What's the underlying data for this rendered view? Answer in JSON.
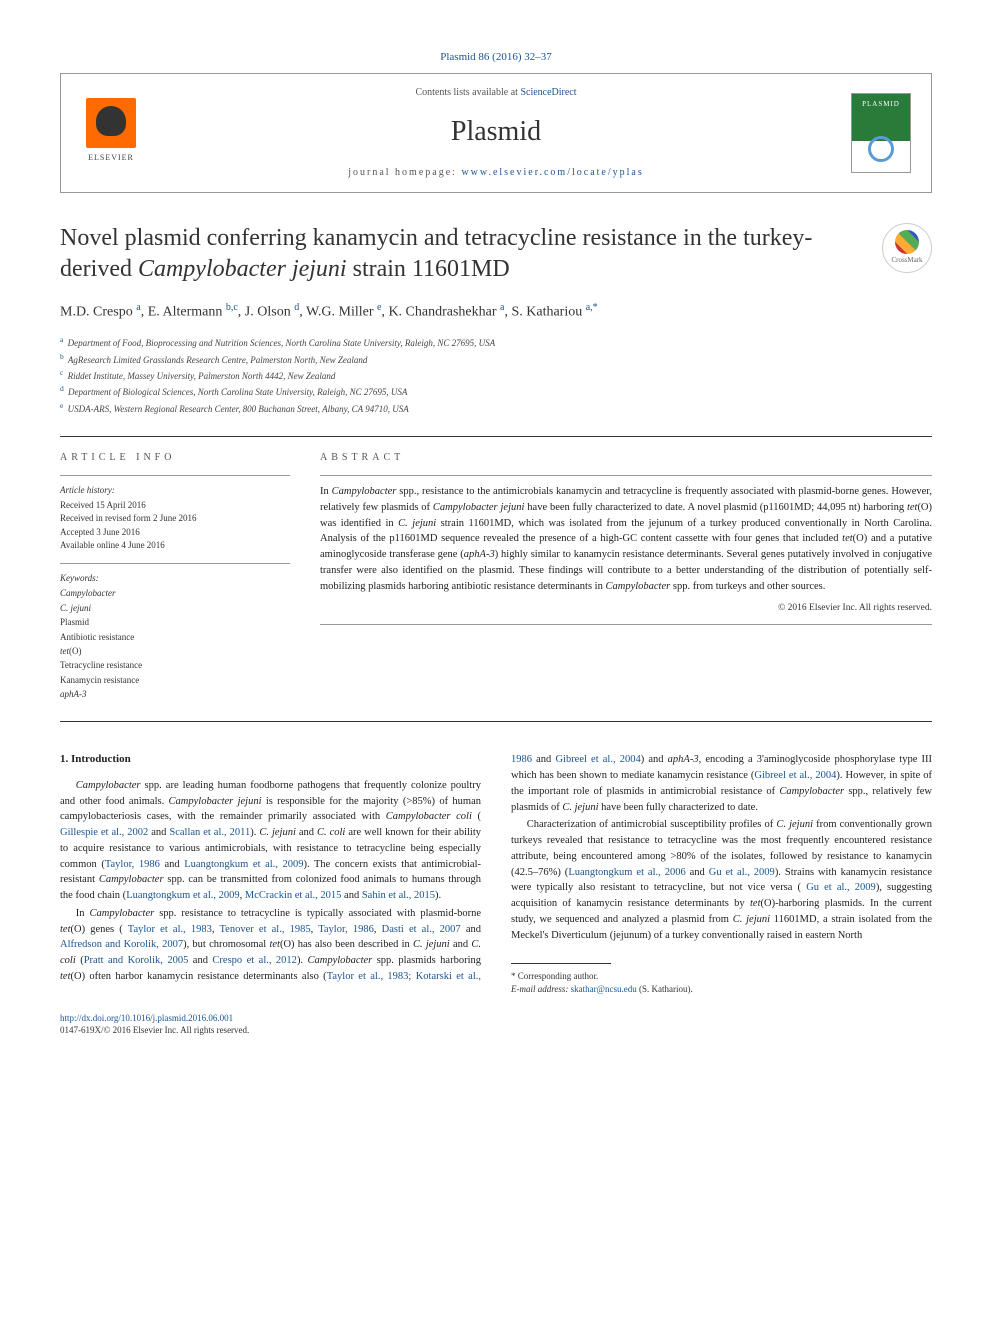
{
  "header": {
    "citation": "Plasmid 86 (2016) 32–37",
    "contents_text": "Contents lists available at ",
    "contents_link": "ScienceDirect",
    "journal": "Plasmid",
    "homepage_label": "journal homepage: ",
    "homepage_url": "www.elsevier.com/locate/yplas",
    "publisher": "ELSEVIER"
  },
  "crossmark": "CrossMark",
  "title_plain": "Novel plasmid conferring kanamycin and tetracycline resistance in the turkey-derived ",
  "title_italic": "Campylobacter jejuni",
  "title_suffix": " strain 11601MD",
  "authors_html": "M.D. Crespo <sup>a</sup>, E. Altermann <sup>b,c</sup>, J. Olson <sup>d</sup>, W.G. Miller <sup>e</sup>, K. Chandrashekhar <sup>a</sup>, S. Kathariou <sup>a,*</sup>",
  "affiliations": [
    {
      "key": "a",
      "text": "Department of Food, Bioprocessing and Nutrition Sciences, North Carolina State University, Raleigh, NC 27695, USA"
    },
    {
      "key": "b",
      "text": "AgResearch Limited Grasslands Research Centre, Palmerston North, New Zealand"
    },
    {
      "key": "c",
      "text": "Riddet Institute, Massey University, Palmerston North 4442, New Zealand"
    },
    {
      "key": "d",
      "text": "Department of Biological Sciences, North Carolina State University, Raleigh, NC 27695, USA"
    },
    {
      "key": "e",
      "text": "USDA-ARS, Western Regional Research Center, 800 Buchanan Street, Albany, CA 94710, USA"
    }
  ],
  "article_info": {
    "heading": "article info",
    "history_label": "Article history:",
    "history": "Received 15 April 2016\nReceived in revised form 2 June 2016\nAccepted 3 June 2016\nAvailable online 4 June 2016",
    "keywords_label": "Keywords:",
    "keywords_html": "<em>Campylobacter</em><br><em>C. jejuni</em><br>Plasmid<br>Antibiotic resistance<br><em>tet</em>(O)<br>Tetracycline resistance<br>Kanamycin resistance<br><em>aphA-3</em>"
  },
  "abstract": {
    "heading": "abstract",
    "text_html": "In <em>Campylobacter</em> spp., resistance to the antimicrobials kanamycin and tetracycline is frequently associated with plasmid-borne genes. However, relatively few plasmids of <em>Campylobacter jejuni</em> have been fully characterized to date. A novel plasmid (p11601MD; 44,095 nt) harboring <em>tet</em>(O) was identified in <em>C. jejuni</em> strain 11601MD, which was isolated from the jejunum of a turkey produced conventionally in North Carolina. Analysis of the p11601MD sequence revealed the presence of a high-GC content cassette with four genes that included <em>tet</em>(O) and a putative aminoglycoside transferase gene (<em>aphA-3</em>) highly similar to kanamycin resistance determinants. Several genes putatively involved in conjugative transfer were also identified on the plasmid. These findings will contribute to a better understanding of the distribution of potentially self-mobilizing plasmids harboring antibiotic resistance determinants in <em>Campylobacter</em> spp. from turkeys and other sources.",
    "copyright": "© 2016 Elsevier Inc. All rights reserved."
  },
  "body": {
    "heading": "1. Introduction",
    "paragraphs_html": [
      "<em>Campylobacter</em> spp. are leading human foodborne pathogens that frequently colonize poultry and other food animals. <em>Campylobacter jejuni</em> is responsible for the majority (&gt;85%) of human campylobacteriosis cases, with the remainder primarily associated with <em>Campylobacter coli</em> ( <a class='link'>Gillespie et al., 2002</a> and <a class='link'>Scallan et al., 2011</a>). <em>C. jejuni</em> and <em>C. coli</em> are well known for their ability to acquire resistance to various antimicrobials, with resistance to tetracycline being especially common (<a class='link'>Taylor, 1986</a> and <a class='link'>Luangtongkum et al., 2009</a>). The concern exists that antimicrobial-resistant <em>Campylobacter</em> spp. can be transmitted from colonized food animals to humans through the food chain (<a class='link'>Luangtongkum et al., 2009</a>, <a class='link'>McCrackin et al., 2015</a> and <a class='link'>Sahin et al., 2015</a>).",
      "In <em>Campylobacter</em> spp. resistance to tetracycline is typically associated with plasmid-borne <em>tet</em>(O) genes ( <a class='link'>Taylor et al., 1983</a>, <a class='link'>Tenover et al., 1985</a>, <a class='link'>Taylor, 1986</a>, <a class='link'>Dasti et al., 2007</a> and <a class='link'>Alfredson and Korolik, 2007</a>), but chromosomal <em>tet</em>(O) has also been described in <em>C. jejuni</em> and <em>C. coli</em> (<a class='link'>Pratt and Korolik, 2005</a> and <a class='link'>Crespo et al., 2012</a>). <em>Campylobacter</em> spp. plasmids harboring <em>tet</em>(O) often harbor kanamycin resistance determinants also (<a class='link'>Taylor et al., 1983; Kotarski et al., 1986</a> and <a class='link'>Gibreel et al., 2004</a>) and <em>aphA-3</em>, encoding a 3'aminoglycoside phosphorylase type III which has been shown to mediate kanamycin resistance (<a class='link'>Gibreel et al., 2004</a>). However, in spite of the important role of plasmids in antimicrobial resistance of <em>Campylobacter</em> spp., relatively few plasmids of <em>C. jejuni</em> have been fully characterized to date.",
      "Characterization of antimicrobial susceptibility profiles of <em>C. jejuni</em> from conventionally grown turkeys revealed that resistance to tetracycline was the most frequently encountered resistance attribute, being encountered among &gt;80% of the isolates, followed by resistance to kanamycin (42.5–76%) (<a class='link'>Luangtongkum et al., 2006</a> and <a class='link'>Gu et al., 2009</a>). Strains with kanamycin resistance were typically also resistant to tetracycline, but not vice versa ( <a class='link'>Gu et al., 2009</a>), suggesting acquisition of kanamycin resistance determinants by <em>tet</em>(O)-harboring plasmids. In the current study, we sequenced and analyzed a plasmid from <em>C. jejuni</em> 11601MD, a strain isolated from the Meckel's Diverticulum (jejunum) of a turkey conventionally raised in eastern North"
    ]
  },
  "footnote": {
    "corr_label": "* Corresponding author.",
    "email_label": "E-mail address:",
    "email": "skathar@ncsu.edu",
    "email_name": "(S. Kathariou)."
  },
  "footer": {
    "doi": "http://dx.doi.org/10.1016/j.plasmid.2016.06.001",
    "issn": "0147-619X/© 2016 Elsevier Inc. All rights reserved."
  },
  "colors": {
    "link": "#1a5490",
    "text": "#222222",
    "elsevier_orange": "#ff6b00"
  }
}
